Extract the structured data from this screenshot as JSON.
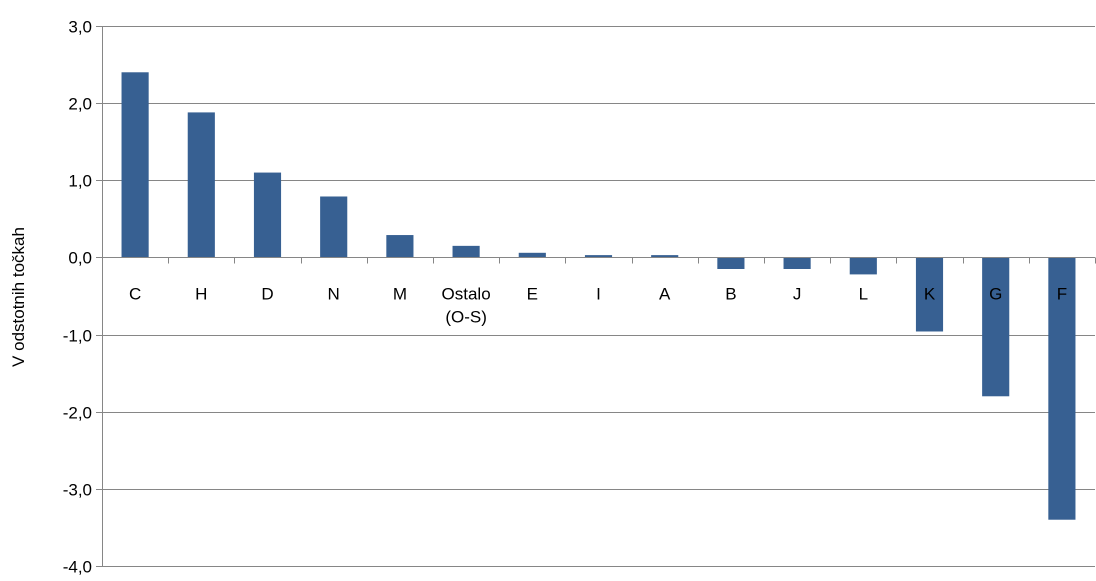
{
  "chart_data": {
    "type": "bar",
    "title": "",
    "xlabel": "",
    "ylabel": "V odstotnih točkah",
    "categories": [
      [
        "C"
      ],
      [
        "H"
      ],
      [
        "D"
      ],
      [
        "N"
      ],
      [
        "M"
      ],
      [
        "Ostalo",
        "(O-S)"
      ],
      [
        "E"
      ],
      [
        "I"
      ],
      [
        "A"
      ],
      [
        "B"
      ],
      [
        "J"
      ],
      [
        "L"
      ],
      [
        "K"
      ],
      [
        "G"
      ],
      [
        "F"
      ]
    ],
    "values": [
      2.4,
      1.88,
      1.1,
      0.79,
      0.29,
      0.15,
      0.06,
      0.03,
      0.03,
      -0.15,
      -0.15,
      -0.22,
      -0.96,
      -1.8,
      -3.4
    ],
    "ylim": [
      -4.0,
      3.0
    ],
    "yticks": [
      3.0,
      2.0,
      1.0,
      0.0,
      -1.0,
      -2.0,
      -3.0,
      -4.0
    ],
    "ytick_labels": [
      "3,0",
      "2,0",
      "1,0",
      "0,0",
      "-1,0",
      "-2,0",
      "-3,0",
      "-4,0"
    ],
    "grid": true,
    "legend": "none",
    "colors": {
      "bar": "#376092",
      "grid": "#868686"
    }
  }
}
